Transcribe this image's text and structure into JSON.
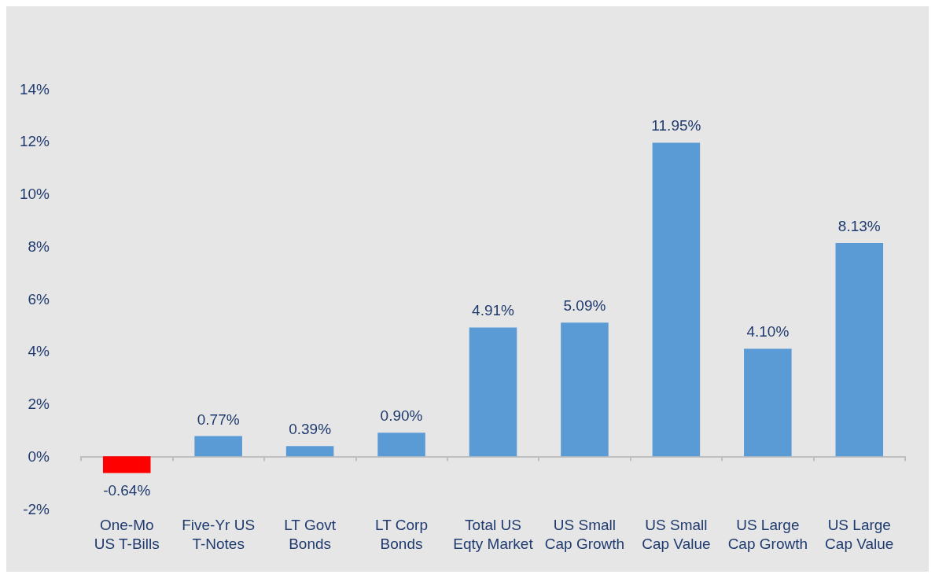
{
  "chart_data": {
    "type": "bar",
    "categories": [
      "One-Mo\nUS T-Bills",
      "Five-Yr US\nT-Notes",
      "LT Govt\nBonds",
      "LT Corp\nBonds",
      "Total US\nEqty Market",
      "US Small\nCap Growth",
      "US Small\nCap Value",
      "US Large\nCap Growth",
      "US Large\nCap Value"
    ],
    "values": [
      -0.64,
      0.77,
      0.39,
      0.9,
      4.91,
      5.09,
      11.95,
      4.1,
      8.13
    ],
    "colors": [
      "#ff0000",
      "#5b9bd5",
      "#5b9bd5",
      "#5b9bd5",
      "#5b9bd5",
      "#5b9bd5",
      "#5b9bd5",
      "#5b9bd5",
      "#5b9bd5"
    ],
    "value_labels": [
      "-0.64%",
      "0.77%",
      "0.39%",
      "0.90%",
      "4.91%",
      "5.09%",
      "11.95%",
      "4.10%",
      "8.13%"
    ],
    "ylim": [
      -2,
      14
    ],
    "yticks": [
      {
        "value": -2,
        "label": "-2%"
      },
      {
        "value": 0,
        "label": "0%"
      },
      {
        "value": 2,
        "label": "2%"
      },
      {
        "value": 4,
        "label": "4%"
      },
      {
        "value": 6,
        "label": "6%"
      },
      {
        "value": 8,
        "label": "8%"
      },
      {
        "value": 10,
        "label": "10%"
      },
      {
        "value": 12,
        "label": "12%"
      },
      {
        "value": 14,
        "label": "14%"
      }
    ],
    "ylabel": null
  }
}
